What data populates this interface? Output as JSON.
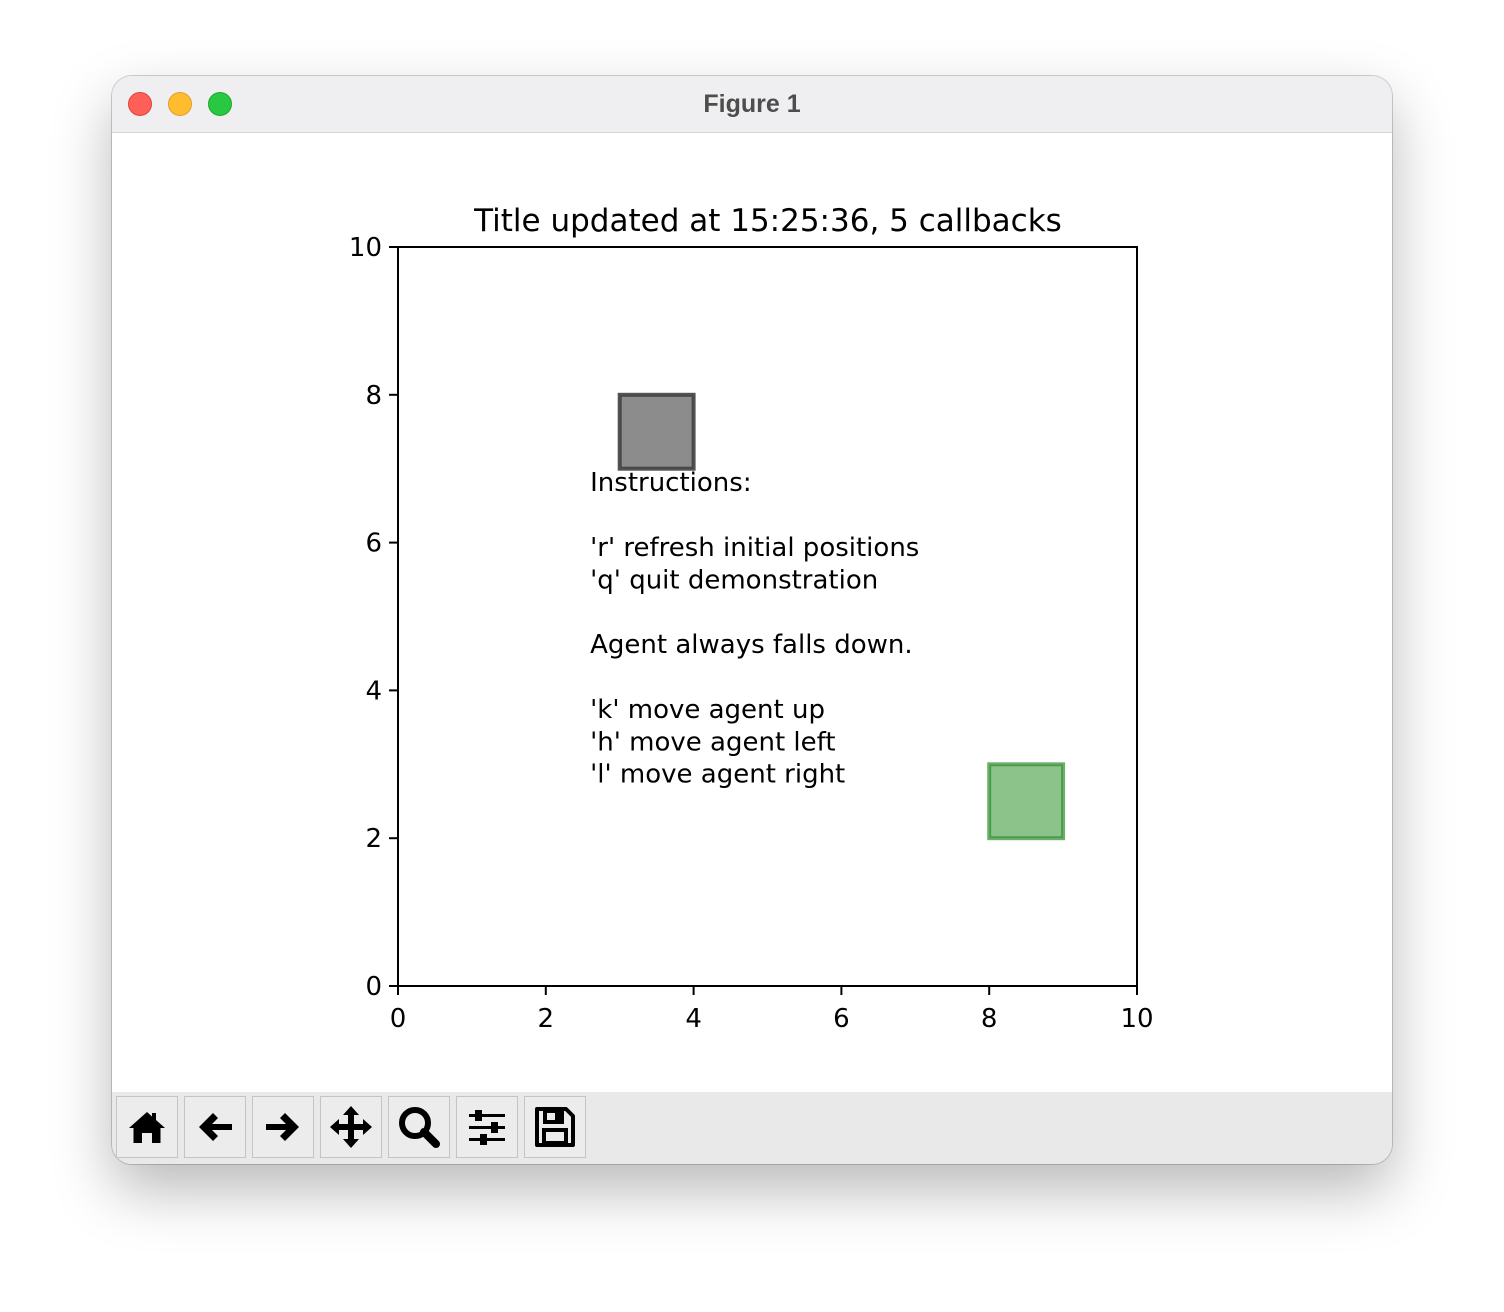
{
  "window": {
    "title": "Figure 1"
  },
  "figure": {
    "title": "Title updated at 15:25:36, 5 callbacks",
    "instructions_lines": [
      "Instructions:",
      "",
      "'r' refresh initial positions",
      "'q' quit demonstration",
      "",
      "Agent always falls down.",
      "",
      "'k' move agent up",
      "'h' move agent left",
      "'l' move agent right"
    ]
  },
  "toolbar": {
    "buttons": [
      {
        "name": "home-button",
        "icon": "home-icon"
      },
      {
        "name": "back-button",
        "icon": "arrow-left-icon"
      },
      {
        "name": "forward-button",
        "icon": "arrow-right-icon"
      },
      {
        "name": "pan-button",
        "icon": "move-icon"
      },
      {
        "name": "zoom-button",
        "icon": "magnifier-icon"
      },
      {
        "name": "configure-subplots-button",
        "icon": "sliders-icon"
      },
      {
        "name": "save-button",
        "icon": "floppy-disk-icon"
      }
    ]
  },
  "chart_data": {
    "type": "scatter",
    "title": "Title updated at 15:25:36, 5 callbacks",
    "xlabel": "",
    "ylabel": "",
    "xlim": [
      0,
      10
    ],
    "ylim": [
      0,
      10
    ],
    "xticks": [
      0,
      2,
      4,
      6,
      8,
      10
    ],
    "yticks": [
      0,
      2,
      4,
      6,
      8,
      10
    ],
    "grid": false,
    "patches": [
      {
        "x": 3,
        "y": 7,
        "width": 1,
        "height": 1,
        "face_color": "#7f7f7f",
        "edge_color": "#404040",
        "alpha": 0.9
      },
      {
        "x": 8,
        "y": 2,
        "width": 1,
        "height": 1,
        "face_color": "#5aaa5a",
        "edge_color": "#2f8f2f",
        "alpha": 0.7
      }
    ],
    "text_anchor": {
      "x": 2.6,
      "y": 6.9
    }
  }
}
